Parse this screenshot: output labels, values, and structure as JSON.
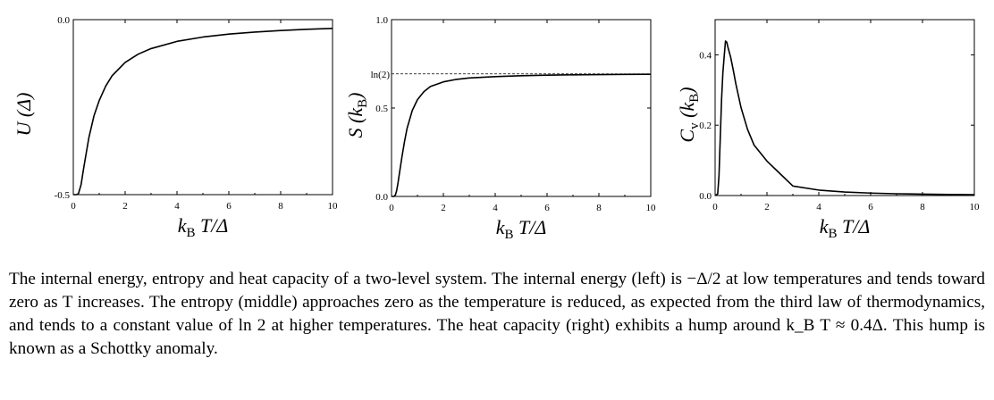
{
  "chart_data": [
    {
      "type": "line",
      "title": "",
      "xlabel": "k_B T/Δ",
      "ylabel": "U (Δ)",
      "xlim": [
        0,
        10
      ],
      "ylim": [
        -0.5,
        0.0
      ],
      "xticks": [
        0,
        2,
        4,
        6,
        8,
        10
      ],
      "xtick_labels": [
        "0",
        "2",
        "4",
        "6",
        "8",
        "10"
      ],
      "yticks": [
        0.0,
        -0.5
      ],
      "ytick_labels": [
        "0.0",
        "-0.5"
      ],
      "series": [
        {
          "x": [
            0,
            0.1,
            0.15,
            0.2,
            0.3,
            0.4,
            0.5,
            0.6,
            0.8,
            1.0,
            1.25,
            1.5,
            2.0,
            2.5,
            3.0,
            4.0,
            5.0,
            6.0,
            7.0,
            8.0,
            9.0,
            10.0
          ],
          "y": [
            -0.5,
            -0.5,
            -0.4994,
            -0.4966,
            -0.4716,
            -0.4244,
            -0.3808,
            -0.3376,
            -0.2742,
            -0.2311,
            -0.19,
            -0.16,
            -0.1224,
            -0.0987,
            -0.0827,
            -0.0621,
            -0.0497,
            -0.0414,
            -0.0355,
            -0.0312,
            -0.0277,
            -0.025
          ]
        }
      ]
    },
    {
      "type": "line",
      "title": "",
      "xlabel": "k_B T/Δ",
      "ylabel": "S (k_B)",
      "xlim": [
        0,
        10
      ],
      "ylim": [
        0.0,
        1.0
      ],
      "xticks": [
        0,
        2,
        4,
        6,
        8,
        10
      ],
      "xtick_labels": [
        "0",
        "2",
        "4",
        "6",
        "8",
        "10"
      ],
      "yticks": [
        0.0,
        0.5,
        1.0
      ],
      "ytick_labels": [
        "0.0",
        "0.5",
        "1.0"
      ],
      "reference_lines": [
        {
          "y": 0.6931,
          "label": "ln(2)",
          "style": "dashed"
        }
      ],
      "series": [
        {
          "x": [
            0,
            0.1,
            0.15,
            0.2,
            0.25,
            0.3,
            0.4,
            0.5,
            0.6,
            0.8,
            1.0,
            1.25,
            1.5,
            2.0,
            2.5,
            3.0,
            4.0,
            5.0,
            6.0,
            7.0,
            8.0,
            9.0,
            10.0
          ],
          "y": [
            0,
            0.0005,
            0.0083,
            0.0342,
            0.0766,
            0.1257,
            0.2216,
            0.3095,
            0.385,
            0.486,
            0.5473,
            0.5926,
            0.6221,
            0.648,
            0.6621,
            0.6702,
            0.6775,
            0.6826,
            0.6858,
            0.688,
            0.6892,
            0.6903,
            0.691
          ]
        }
      ]
    },
    {
      "type": "line",
      "title": "",
      "xlabel": "k_B T/Δ",
      "ylabel": "C_v (k_B)",
      "xlim": [
        0,
        10
      ],
      "ylim": [
        0.0,
        0.5
      ],
      "xticks": [
        0,
        2,
        4,
        6,
        8,
        10
      ],
      "xtick_labels": [
        "0",
        "2",
        "4",
        "6",
        "8",
        "10"
      ],
      "yticks": [
        0.0,
        0.2,
        0.4
      ],
      "ytick_labels": [
        "0.0",
        "0.2",
        "0.4"
      ],
      "series": [
        {
          "x": [
            0,
            0.1,
            0.15,
            0.2,
            0.25,
            0.3,
            0.35,
            0.4,
            0.45,
            0.5,
            0.6,
            0.7,
            0.8,
            1.0,
            1.25,
            1.5,
            2.0,
            2.5,
            3.0,
            4.0,
            5.0,
            6.0,
            7.0,
            8.0,
            9.0,
            10.0
          ],
          "y": [
            0,
            0.0045,
            0.0563,
            0.1663,
            0.2741,
            0.3492,
            0.395,
            0.4392,
            0.436,
            0.42,
            0.3932,
            0.3567,
            0.3174,
            0.25,
            0.1883,
            0.1438,
            0.0979,
            0.0625,
            0.027,
            0.0155,
            0.01,
            0.007,
            0.0051,
            0.0039,
            0.0031,
            0.0025
          ]
        }
      ]
    }
  ],
  "caption": "The internal energy, entropy and heat capacity of a two-level system. The internal energy (left) is −Δ/2 at low temperatures and tends toward zero as T increases. The entropy (middle) approaches zero as the temperature is reduced, as expected from the third law of thermodynamics, and tends to a constant value of ln 2 at higher temperatures. The heat capacity (right) exhibits a hump around k_B T ≈ 0.4Δ. This hump is known as a Schottky anomaly."
}
